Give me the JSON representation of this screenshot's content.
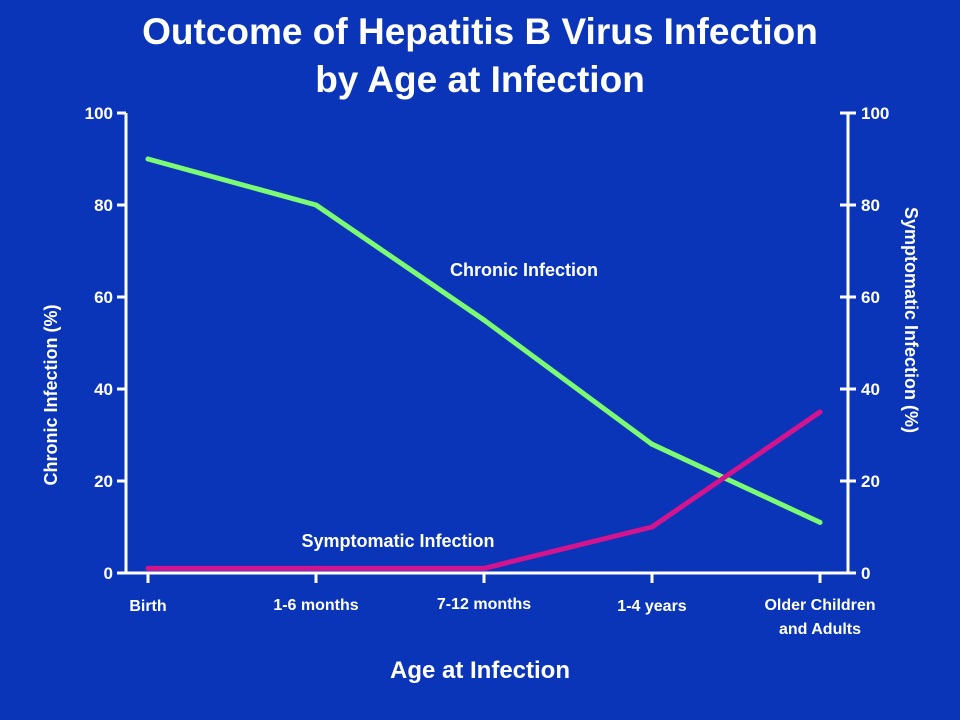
{
  "title_line1": "Outcome of Hepatitis B Virus Infection",
  "title_line2": "by Age at Infection",
  "chart_data": {
    "type": "line",
    "categories": [
      "Birth",
      "1-6 months",
      "7-12 months",
      "1-4 years",
      "Older Children|and Adults"
    ],
    "xlabel": "Age at Infection",
    "ylabel_left": "Chronic Infection (%)",
    "ylabel_right": "Symptomatic Infection (%)",
    "ylim": [
      0,
      100
    ],
    "yticks": [
      0,
      20,
      40,
      60,
      80,
      100
    ],
    "grid": false,
    "series": [
      {
        "name": "Chronic Infection",
        "color": "#7dfa73",
        "axis": "left",
        "values": [
          90,
          80,
          55,
          28,
          11
        ]
      },
      {
        "name": "Symptomatic Infection",
        "color": "#d4138e",
        "axis": "right",
        "values": [
          1,
          1,
          1,
          10,
          35
        ]
      }
    ]
  }
}
